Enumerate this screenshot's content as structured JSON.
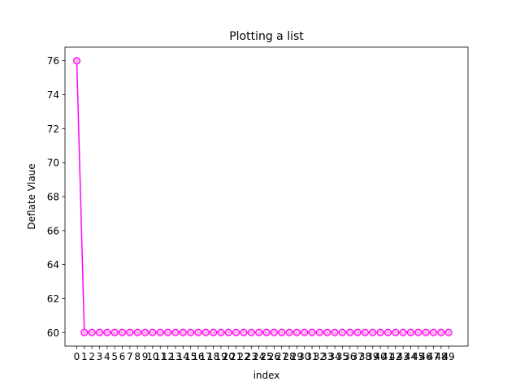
{
  "chart_data": {
    "type": "line",
    "title": "Plotting a list",
    "xlabel": "index",
    "ylabel": "Deflate Vlaue",
    "x": [
      0,
      1,
      2,
      3,
      4,
      5,
      6,
      7,
      8,
      9,
      10,
      11,
      12,
      13,
      14,
      15,
      16,
      17,
      18,
      19,
      20,
      21,
      22,
      23,
      24,
      25,
      26,
      27,
      28,
      29,
      30,
      31,
      32,
      33,
      34,
      35,
      36,
      37,
      38,
      39,
      40,
      41,
      42,
      43,
      44,
      45,
      46,
      47,
      48,
      49
    ],
    "xticks": [
      0,
      1,
      2,
      3,
      4,
      5,
      6,
      7,
      8,
      9,
      10,
      11,
      12,
      13,
      14,
      15,
      16,
      17,
      18,
      19,
      20,
      21,
      22,
      23,
      24,
      25,
      26,
      27,
      28,
      29,
      30,
      31,
      32,
      33,
      34,
      35,
      36,
      37,
      38,
      39,
      40,
      41,
      42,
      43,
      44,
      45,
      46,
      47,
      48,
      49
    ],
    "yticks": [
      60,
      62,
      64,
      66,
      68,
      70,
      72,
      74,
      76
    ],
    "xlim": [
      -1.55,
      51.55
    ],
    "ylim": [
      59.2,
      76.8
    ],
    "grid": false,
    "series": [
      {
        "values": [
          76,
          60,
          60,
          60,
          60,
          60,
          60,
          60,
          60,
          60,
          60,
          60,
          60,
          60,
          60,
          60,
          60,
          60,
          60,
          60,
          60,
          60,
          60,
          60,
          60,
          60,
          60,
          60,
          60,
          60,
          60,
          60,
          60,
          60,
          60,
          60,
          60,
          60,
          60,
          60,
          60,
          60,
          60,
          60,
          60,
          60,
          60,
          60,
          60,
          60
        ],
        "color": "#ff00ff",
        "marker_face": "#ffb6e8",
        "marker": "circle"
      }
    ]
  }
}
